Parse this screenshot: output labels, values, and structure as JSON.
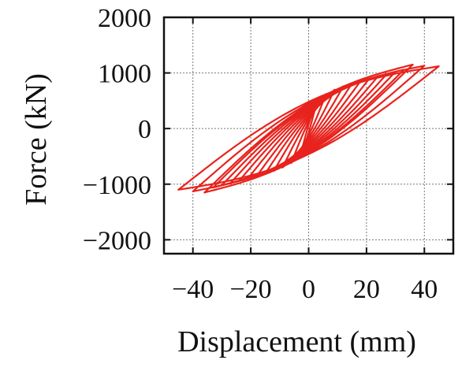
{
  "chart_data": {
    "type": "line",
    "title": "",
    "xlabel": "Displacement (mm)",
    "ylabel": "Force (kN)",
    "xlim": [
      -50,
      50
    ],
    "ylim": [
      -2250,
      2000
    ],
    "x_ticks": [
      -40,
      -20,
      0,
      20,
      40
    ],
    "y_ticks": [
      2000,
      1000,
      0,
      -1000,
      -2000
    ],
    "x_tick_labels": [
      "−40",
      "−20",
      "0",
      "20",
      "40"
    ],
    "y_tick_labels": [
      "2000",
      "1000",
      "0",
      "−1000",
      "−2000"
    ],
    "grid": true,
    "legend": "none",
    "line_color": "#e8231d",
    "series": [
      {
        "loops": [
          {
            "x_max": 3,
            "f_max": 520,
            "x_min": -3,
            "f_min": -520,
            "half_width": 70
          },
          {
            "x_max": 6,
            "f_max": 620,
            "x_min": -6,
            "f_min": -620,
            "half_width": 120
          },
          {
            "x_max": 9,
            "f_max": 700,
            "x_min": -9,
            "f_min": -700,
            "half_width": 170
          },
          {
            "x_max": 12,
            "f_max": 760,
            "x_min": -12,
            "f_min": -760,
            "half_width": 210
          },
          {
            "x_max": 15,
            "f_max": 810,
            "x_min": -15,
            "f_min": -810,
            "half_width": 245
          },
          {
            "x_max": 18,
            "f_max": 860,
            "x_min": -18,
            "f_min": -860,
            "half_width": 280
          },
          {
            "x_max": 21,
            "f_max": 900,
            "x_min": -21,
            "f_min": -900,
            "half_width": 310
          },
          {
            "x_max": 24,
            "f_max": 940,
            "x_min": -24,
            "f_min": -940,
            "half_width": 340
          },
          {
            "x_max": 27,
            "f_max": 980,
            "x_min": -27,
            "f_min": -980,
            "half_width": 365
          },
          {
            "x_max": 30,
            "f_max": 1020,
            "x_min": -30,
            "f_min": -1020,
            "half_width": 390
          },
          {
            "x_max": 33,
            "f_max": 1060,
            "x_min": -33,
            "f_min": -1060,
            "half_width": 410
          },
          {
            "x_max": 36,
            "f_max": 1150,
            "x_min": -36,
            "f_min": -1150,
            "half_width": 430
          },
          {
            "x_max": 40,
            "f_max": 1130,
            "x_min": -40,
            "f_min": -1130,
            "half_width": 450
          },
          {
            "x_max": 45,
            "f_max": 1120,
            "x_min": -45,
            "f_min": -1100,
            "half_width": 470
          }
        ]
      }
    ]
  }
}
